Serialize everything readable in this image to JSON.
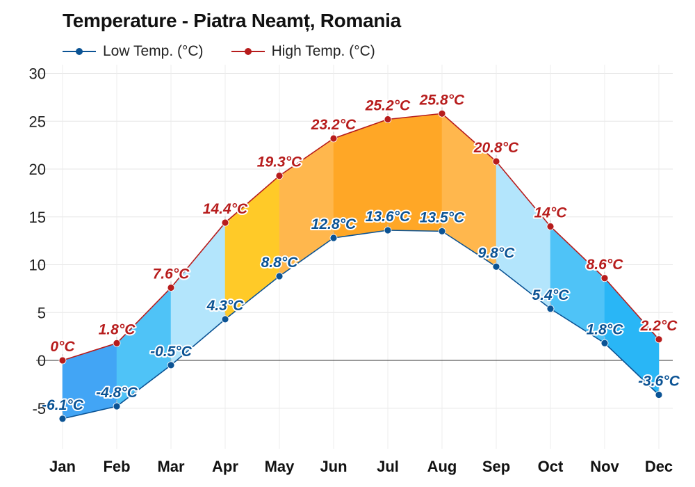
{
  "chart_data": {
    "type": "line",
    "title": "Temperature - Piatra Neamț, Romania",
    "categories": [
      "Jan",
      "Feb",
      "Mar",
      "Apr",
      "May",
      "Jun",
      "Jul",
      "Aug",
      "Sep",
      "Oct",
      "Nov",
      "Dec"
    ],
    "series": [
      {
        "name": "Low Temp. (°C)",
        "color": "#0b5394",
        "values": [
          -6.1,
          -4.8,
          -0.5,
          4.3,
          8.8,
          12.8,
          13.6,
          13.5,
          9.8,
          5.4,
          1.8,
          -3.6
        ],
        "labels": [
          "-6.1°C",
          "-4.8°C",
          "-0.5°C",
          "4.3°C",
          "8.8°C",
          "12.8°C",
          "13.6°C",
          "13.5°C",
          "9.8°C",
          "5.4°C",
          "1.8°C",
          "-3.6°C"
        ]
      },
      {
        "name": "High Temp. (°C)",
        "color": "#b71c1c",
        "values": [
          0,
          1.8,
          7.6,
          14.4,
          19.3,
          23.2,
          25.2,
          25.8,
          20.8,
          14,
          8.6,
          2.2
        ],
        "labels": [
          "0°C",
          "1.8°C",
          "7.6°C",
          "14.4°C",
          "19.3°C",
          "23.2°C",
          "25.2°C",
          "25.8°C",
          "20.8°C",
          "14°C",
          "8.6°C",
          "2.2°C"
        ]
      }
    ],
    "band_colors": [
      "#42a5f5",
      "#4fc3f7",
      "#b3e5fc",
      "#ffca28",
      "#ffb74d",
      "#ffa726",
      "#ffa726",
      "#ffb74d",
      "#b3e5fc",
      "#4fc3f7",
      "#29b6f6",
      "#29b6f6"
    ],
    "yticks": [
      "30",
      "25",
      "20",
      "15",
      "10",
      "5",
      "0",
      "-5"
    ],
    "ylim": [
      -9,
      30
    ],
    "grid": true,
    "legend_position": "top-left"
  }
}
